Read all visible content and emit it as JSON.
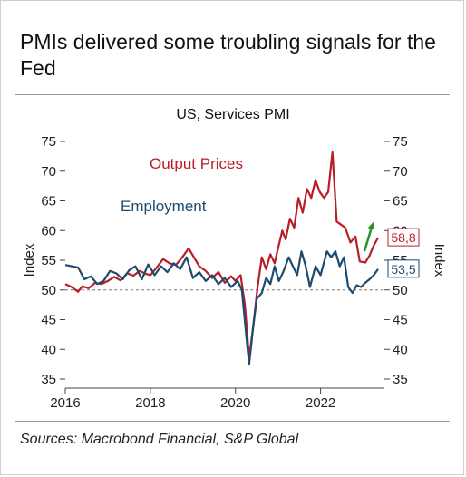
{
  "header": {
    "title": "PMIs delivered some troubling signals for the Fed"
  },
  "footer": {
    "source": "Sources: Macrobond Financial, S&P Global"
  },
  "chart_data": {
    "type": "line",
    "title": "US, Services PMI",
    "ylabel_left": "Index",
    "ylabel_right": "Index",
    "ylim": [
      35,
      75
    ],
    "xlim": [
      2016,
      2023.5
    ],
    "yticks": [
      35,
      40,
      45,
      50,
      55,
      60,
      65,
      70,
      75
    ],
    "xticks": [
      2016,
      2018,
      2020,
      2022
    ],
    "xtick_labels": [
      "2016",
      "2018",
      "2020",
      "2022"
    ],
    "reference_line": 50,
    "series": [
      {
        "name": "Output Prices",
        "color": "#b81e25",
        "end_label": "58,8",
        "points": [
          [
            2016.0,
            51.0
          ],
          [
            2016.15,
            50.5
          ],
          [
            2016.3,
            49.7
          ],
          [
            2016.4,
            50.6
          ],
          [
            2016.55,
            50.3
          ],
          [
            2016.7,
            51.2
          ],
          [
            2016.85,
            51.0
          ],
          [
            2017.0,
            51.5
          ],
          [
            2017.15,
            52.2
          ],
          [
            2017.3,
            51.6
          ],
          [
            2017.45,
            52.8
          ],
          [
            2017.6,
            52.4
          ],
          [
            2017.75,
            53.2
          ],
          [
            2017.9,
            52.7
          ],
          [
            2018.0,
            52.5
          ],
          [
            2018.15,
            53.8
          ],
          [
            2018.3,
            55.2
          ],
          [
            2018.45,
            54.5
          ],
          [
            2018.6,
            54.2
          ],
          [
            2018.75,
            55.5
          ],
          [
            2018.9,
            57.0
          ],
          [
            2019.0,
            55.8
          ],
          [
            2019.15,
            54.0
          ],
          [
            2019.3,
            53.2
          ],
          [
            2019.45,
            52.0
          ],
          [
            2019.6,
            53.0
          ],
          [
            2019.75,
            51.2
          ],
          [
            2019.9,
            52.3
          ],
          [
            2020.0,
            51.5
          ],
          [
            2020.12,
            52.5
          ],
          [
            2020.22,
            47.5
          ],
          [
            2020.32,
            38.5
          ],
          [
            2020.42,
            44.0
          ],
          [
            2020.52,
            50.5
          ],
          [
            2020.62,
            55.5
          ],
          [
            2020.72,
            53.5
          ],
          [
            2020.82,
            56.0
          ],
          [
            2020.92,
            54.5
          ],
          [
            2021.0,
            57.0
          ],
          [
            2021.1,
            60.0
          ],
          [
            2021.18,
            58.5
          ],
          [
            2021.28,
            62.0
          ],
          [
            2021.38,
            60.5
          ],
          [
            2021.48,
            65.5
          ],
          [
            2021.58,
            63.0
          ],
          [
            2021.68,
            67.0
          ],
          [
            2021.78,
            65.5
          ],
          [
            2021.88,
            68.5
          ],
          [
            2021.98,
            66.5
          ],
          [
            2022.08,
            65.5
          ],
          [
            2022.18,
            66.5
          ],
          [
            2022.28,
            73.2
          ],
          [
            2022.38,
            61.5
          ],
          [
            2022.48,
            61.0
          ],
          [
            2022.58,
            60.5
          ],
          [
            2022.7,
            58.0
          ],
          [
            2022.82,
            59.0
          ],
          [
            2022.92,
            54.8
          ],
          [
            2023.05,
            54.6
          ],
          [
            2023.15,
            55.8
          ],
          [
            2023.25,
            57.5
          ],
          [
            2023.35,
            58.8
          ]
        ]
      },
      {
        "name": "Employment",
        "color": "#1e4a6e",
        "end_label": "53,5",
        "points": [
          [
            2016.0,
            54.2
          ],
          [
            2016.15,
            54.0
          ],
          [
            2016.3,
            53.8
          ],
          [
            2016.45,
            51.8
          ],
          [
            2016.6,
            52.3
          ],
          [
            2016.75,
            51.0
          ],
          [
            2016.9,
            51.5
          ],
          [
            2017.05,
            53.2
          ],
          [
            2017.2,
            52.8
          ],
          [
            2017.35,
            51.8
          ],
          [
            2017.5,
            53.3
          ],
          [
            2017.65,
            54.0
          ],
          [
            2017.8,
            51.8
          ],
          [
            2017.95,
            54.3
          ],
          [
            2018.1,
            52.5
          ],
          [
            2018.25,
            54.0
          ],
          [
            2018.4,
            53.0
          ],
          [
            2018.55,
            54.5
          ],
          [
            2018.7,
            53.5
          ],
          [
            2018.85,
            55.5
          ],
          [
            2019.0,
            52.0
          ],
          [
            2019.15,
            53.0
          ],
          [
            2019.3,
            51.5
          ],
          [
            2019.45,
            52.5
          ],
          [
            2019.6,
            51.0
          ],
          [
            2019.75,
            52.0
          ],
          [
            2019.9,
            50.5
          ],
          [
            2020.05,
            51.5
          ],
          [
            2020.15,
            50.0
          ],
          [
            2020.25,
            42.5
          ],
          [
            2020.32,
            37.5
          ],
          [
            2020.42,
            44.0
          ],
          [
            2020.5,
            48.5
          ],
          [
            2020.62,
            49.5
          ],
          [
            2020.72,
            52.0
          ],
          [
            2020.82,
            51.0
          ],
          [
            2020.92,
            54.0
          ],
          [
            2021.02,
            51.5
          ],
          [
            2021.12,
            53.0
          ],
          [
            2021.25,
            55.5
          ],
          [
            2021.35,
            54.0
          ],
          [
            2021.45,
            52.5
          ],
          [
            2021.55,
            56.5
          ],
          [
            2021.65,
            54.0
          ],
          [
            2021.75,
            50.5
          ],
          [
            2021.88,
            54.0
          ],
          [
            2022.0,
            52.5
          ],
          [
            2022.15,
            56.5
          ],
          [
            2022.25,
            55.5
          ],
          [
            2022.35,
            56.5
          ],
          [
            2022.45,
            54.0
          ],
          [
            2022.55,
            55.5
          ],
          [
            2022.65,
            50.5
          ],
          [
            2022.75,
            49.5
          ],
          [
            2022.85,
            50.8
          ],
          [
            2022.95,
            50.5
          ],
          [
            2023.05,
            51.2
          ],
          [
            2023.15,
            51.8
          ],
          [
            2023.25,
            52.5
          ],
          [
            2023.35,
            53.5
          ]
        ]
      }
    ],
    "annotations": [
      {
        "type": "arrow",
        "color": "#2f8f2f",
        "from": [
          2023.03,
          56.5
        ],
        "to": [
          2023.22,
          61.0
        ]
      }
    ]
  }
}
